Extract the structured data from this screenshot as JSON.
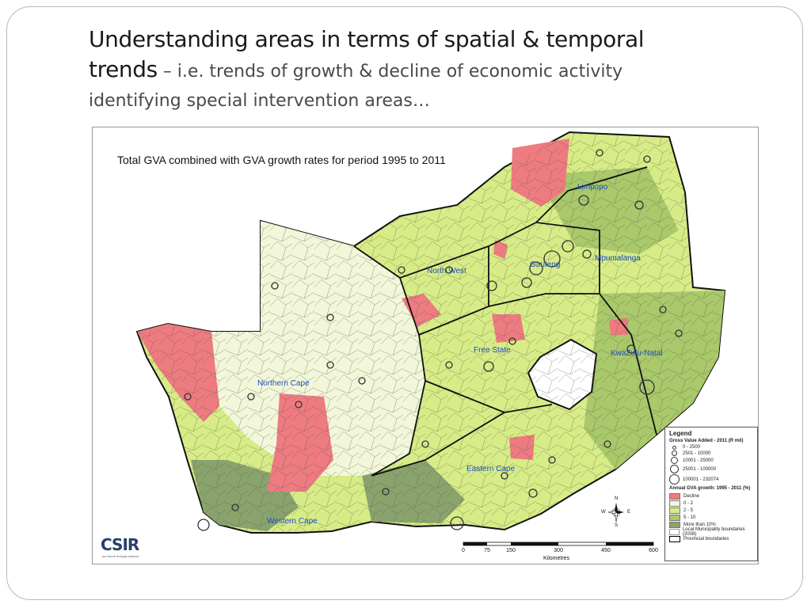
{
  "slide": {
    "title_line1": "Understanding areas in terms of spatial & temporal",
    "title_trends": "trends",
    "subtitle_line1": " – i.e. trends of growth & decline of economic activity",
    "subtitle_line2": "identifying special intervention areas…"
  },
  "map": {
    "title": "Total GVA combined with GVA growth rates for period 1995 to 2011",
    "provinces": {
      "limpopo": "Limpopo",
      "north_west": "North West",
      "gauteng": "Gauteng",
      "mpumalanga": "Mpumalanga",
      "free_state": "Free State",
      "kwazulu_natal": "KwaZulu-Natal",
      "northern_cape": "Northern Cape",
      "eastern_cape": "Eastern Cape",
      "western_cape": "Western Cape"
    },
    "colors": {
      "decline": "#ee7b80",
      "g0_2": "#f2f7d9",
      "g2_5": "#d7ec86",
      "g5_10": "#a9c96a",
      "g_more10": "#8aa36c",
      "border": "#111111",
      "label": "#1f4fbf"
    },
    "legend": {
      "title": "Legend",
      "gva_heading": "Gross Value Added - 2011 (R mil)",
      "gva_classes": [
        "0 - 2500",
        "2501 - 10000",
        "10001 - 25000",
        "25001 - 100000",
        "100001 - 232074"
      ],
      "growth_heading": "Annual GVA growth: 1995 - 2011 (%)",
      "growth_classes": [
        "Decline",
        "0 - 2",
        "2 - 5",
        "5 - 10",
        "More than 10%"
      ],
      "local_boundaries": "Local Municipality boundaries (2008)",
      "provincial_boundaries": "Provincial boundaries"
    },
    "compass": {
      "n": "N",
      "s": "S",
      "e": "E",
      "w": "W"
    },
    "scale": {
      "ticks": [
        "0",
        "75",
        "150",
        "300",
        "450",
        "600"
      ],
      "units": "Kilometres"
    },
    "logo": {
      "name": "CSIR",
      "tagline": "our future through science"
    }
  }
}
